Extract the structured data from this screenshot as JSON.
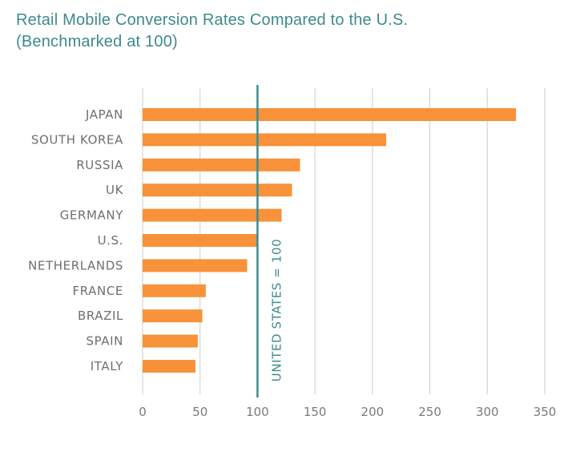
{
  "chart_data": {
    "type": "bar",
    "orientation": "horizontal",
    "title": "Retail Mobile Conversion Rates Compared to the U.S.",
    "subtitle": "(Benchmarked at 100)",
    "categories": [
      "JAPAN",
      "SOUTH KOREA",
      "RUSSIA",
      "UK",
      "GERMANY",
      "U.S.",
      "NETHERLANDS",
      "FRANCE",
      "BRAZIL",
      "SPAIN",
      "ITALY"
    ],
    "values": [
      325,
      212,
      137,
      130,
      121,
      100,
      91,
      55,
      52,
      48,
      46
    ],
    "xlim": [
      0,
      350
    ],
    "xticks": [
      "0",
      "50",
      "100",
      "150",
      "200",
      "250",
      "300",
      "350"
    ],
    "xtick_values": [
      0,
      50,
      100,
      150,
      200,
      250,
      300,
      350
    ],
    "grid": true,
    "reference_line": {
      "value": 100,
      "label": "UNITED STATES = 100"
    },
    "colors": {
      "bar": "#f7923a",
      "reference": "#3f8a8c",
      "grid": "#d4d4d4",
      "title": "#3f8a8c"
    }
  }
}
